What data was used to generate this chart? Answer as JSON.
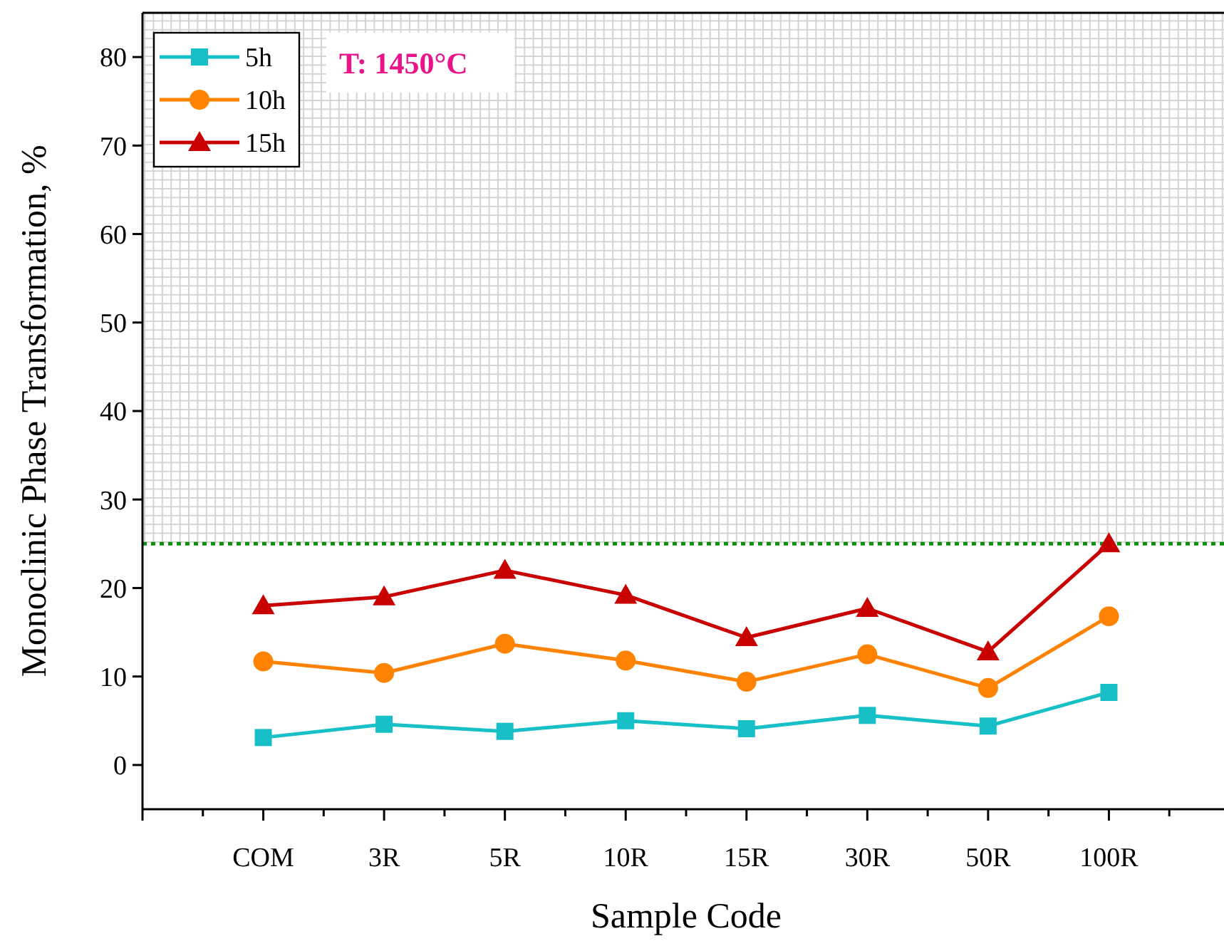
{
  "chart_data": {
    "type": "line",
    "xlabel": "Sample Code",
    "ylabel": "Monoclinic Phase Transformation, %",
    "categories": [
      null,
      "COM",
      "3R",
      "5R",
      "10R",
      "15R",
      "30R",
      "50R",
      "100R",
      null
    ],
    "series": [
      {
        "name": "5h",
        "color": "#17c0c6",
        "marker": "square",
        "values": [
          null,
          3.1,
          4.6,
          3.8,
          5.0,
          4.1,
          5.6,
          4.4,
          8.2,
          null
        ]
      },
      {
        "name": "10h",
        "color": "#ff8300",
        "marker": "circle",
        "values": [
          null,
          11.7,
          10.4,
          13.7,
          11.8,
          9.4,
          12.5,
          8.7,
          16.8,
          null
        ]
      },
      {
        "name": "15h",
        "color": "#c80000",
        "marker": "triangle",
        "values": [
          null,
          18.0,
          19.0,
          22.0,
          19.2,
          14.4,
          17.7,
          12.8,
          25.0,
          null
        ]
      }
    ],
    "ylim": [
      -5,
      85
    ],
    "yticks": [
      0,
      10,
      20,
      30,
      40,
      50,
      60,
      70,
      80
    ],
    "legend": "top left",
    "line_style": "solid",
    "ref_lines": [
      {
        "axis": "y",
        "value": 25,
        "color": "#109010",
        "line_style": "dotted"
      }
    ],
    "bands": [
      {
        "axis": "y",
        "from": 25,
        "to": 85,
        "color": "#d4d4d4"
      }
    ],
    "annotations": [
      "T: 1450°C"
    ]
  }
}
